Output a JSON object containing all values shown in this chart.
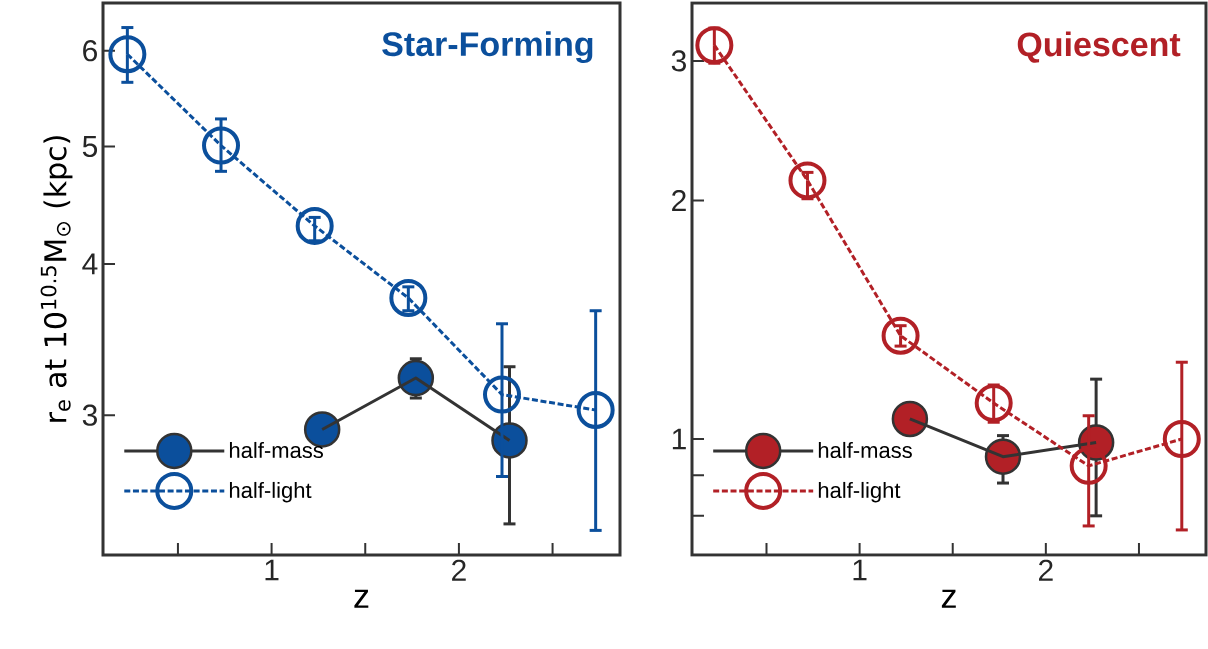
{
  "chart_data": [
    {
      "type": "line",
      "title": "Star-Forming",
      "xlabel": "z",
      "ylabel": "r$_{e}$ at 10$^{10.5}$M$_{⊙}$ (kpc)",
      "log": "y",
      "legend": "bottom left",
      "marker": "circle",
      "xlim": [
        0.1,
        2.86
      ],
      "ylim": [
        2.3,
        6.57
      ],
      "xticks": [
        {
          "value": 0.5,
          "label": null
        },
        1,
        {
          "value": 1.5,
          "label": null
        },
        2,
        {
          "value": 2.5,
          "label": null
        }
      ],
      "yticks": [
        3,
        4,
        5,
        6
      ],
      "series": [
        {
          "name": "half-mass",
          "color": "#0b4f9c",
          "line_style": "solid",
          "x": [
            1.27,
            1.77,
            2.27
          ],
          "values": [
            2.92,
            3.22,
            2.86
          ],
          "errors": [
            null,
            [
              3.1,
              3.34
            ],
            [
              2.44,
              3.29
            ]
          ]
        },
        {
          "name": "half-light",
          "color": "#0b4f9c",
          "line_style": "dashed",
          "x": [
            0.23,
            0.73,
            1.23,
            1.73,
            2.23,
            2.73
          ],
          "values": [
            5.96,
            5.01,
            4.3,
            3.75,
            3.12,
            3.03
          ],
          "errors": [
            [
              5.65,
              6.27
            ],
            [
              4.77,
              5.27
            ],
            [
              4.18,
              4.37
            ],
            [
              3.66,
              3.83
            ],
            [
              2.67,
              3.57
            ],
            [
              2.41,
              3.66
            ]
          ]
        }
      ]
    },
    {
      "type": "line",
      "title": "Quiescent",
      "xlabel": "z",
      "log": "y",
      "legend": "bottom left",
      "marker": "circle",
      "xlim": [
        0.1,
        2.86
      ],
      "ylim": [
        0.714,
        3.55
      ],
      "xticks": [
        {
          "value": 0.5,
          "label": null
        },
        1,
        {
          "value": 1.5,
          "label": null
        },
        2,
        {
          "value": 2.5,
          "label": null
        }
      ],
      "yticks": [
        {
          "value": 0.8,
          "label": null
        },
        {
          "value": 0.9,
          "label": null
        },
        1,
        2,
        3
      ],
      "series": [
        {
          "name": "half-mass",
          "color": "#b22026",
          "line_style": "solid",
          "x": [
            1.27,
            1.77,
            2.27
          ],
          "values": [
            1.06,
            0.95,
            0.99
          ],
          "errors": [
            null,
            [
              0.88,
              1.01
            ],
            [
              0.8,
              1.19
            ]
          ]
        },
        {
          "name": "half-light",
          "color": "#b22026",
          "line_style": "dashed",
          "x": [
            0.22,
            0.72,
            1.22,
            1.72,
            2.23,
            2.73
          ],
          "values": [
            3.14,
            2.12,
            1.35,
            1.11,
            0.925,
            1.0
          ],
          "errors": [
            [
              2.98,
              3.3
            ],
            [
              2.01,
              2.17
            ],
            [
              1.31,
              1.39
            ],
            [
              1.05,
              1.17
            ],
            [
              0.777,
              1.07
            ],
            [
              0.768,
              1.25
            ]
          ]
        }
      ]
    }
  ]
}
